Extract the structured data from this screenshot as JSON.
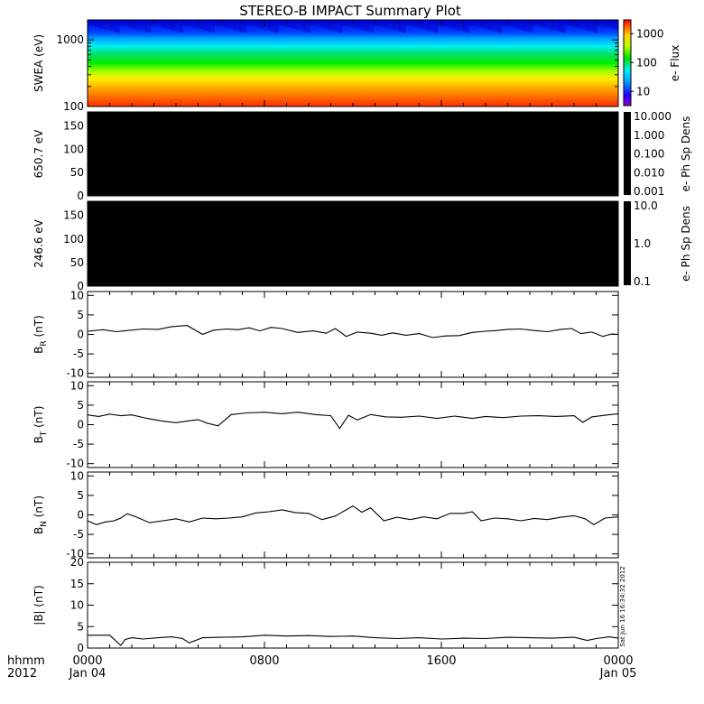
{
  "title": "STEREO-B IMPACT Summary Plot",
  "colors": {
    "background": "#ffffff",
    "axes": "#000000",
    "line": "#000000",
    "empty_panel": "#000000"
  },
  "time_axis": {
    "corner_label": "hhmm",
    "year_label": "2012",
    "ticks": [
      {
        "t": 0,
        "main": "0000",
        "sub": "Jan 04"
      },
      {
        "t": 8,
        "main": "0800",
        "sub": ""
      },
      {
        "t": 16,
        "main": "1600",
        "sub": ""
      },
      {
        "t": 24,
        "main": "0000",
        "sub": "Jan 05"
      }
    ],
    "range_hours": [
      0,
      24
    ]
  },
  "timestamp_note": "Sat Jun 16 16:34:32 2012",
  "chart_data": [
    {
      "type": "heatmap",
      "ylabel": "SWEA (eV)",
      "y_scale": "log",
      "ylim": [
        100,
        2000
      ],
      "yticks": [
        100,
        1000
      ],
      "ytick_labels": [
        "100",
        "1000"
      ],
      "color_scale": "rainbow",
      "colorbar": {
        "label": "e- Flux",
        "scale": "log",
        "range": [
          3,
          3000
        ],
        "ticks": [
          "10",
          "100",
          "1000"
        ]
      },
      "energy_color_profile": [
        {
          "energy_eV": 100,
          "color": "#ff2a00"
        },
        {
          "energy_eV": 180,
          "color": "#ffa000"
        },
        {
          "energy_eV": 260,
          "color": "#ffee00"
        },
        {
          "energy_eV": 330,
          "color": "#b0ff00"
        },
        {
          "energy_eV": 450,
          "color": "#00ee00"
        },
        {
          "energy_eV": 620,
          "color": "#00e070"
        },
        {
          "energy_eV": 800,
          "color": "#00f0f0"
        },
        {
          "energy_eV": 1050,
          "color": "#00a0ff"
        },
        {
          "energy_eV": 1300,
          "color": "#0040ff"
        },
        {
          "energy_eV": 2000,
          "color": "#0000e0"
        }
      ]
    },
    {
      "type": "heatmap",
      "ylabel": "650.7 eV",
      "ylim": [
        0,
        180
      ],
      "yticks": [
        0,
        50,
        100,
        150
      ],
      "fill": "#000000",
      "colorbar": {
        "label": "e- Ph Sp Dens",
        "scale": "log",
        "ticks": [
          "10.000",
          "1.000",
          "0.100",
          "0.010",
          "0.001"
        ]
      }
    },
    {
      "type": "heatmap",
      "ylabel": "246.6 eV",
      "ylim": [
        0,
        180
      ],
      "yticks": [
        0,
        50,
        100,
        150
      ],
      "fill": "#000000",
      "colorbar": {
        "label": "e- Ph Sp Dens",
        "scale": "log",
        "ticks": [
          "10.0",
          "1.0",
          "0.1"
        ]
      }
    },
    {
      "type": "line",
      "ylabel_main": "B",
      "ylabel_sub": "R",
      "ylabel_unit": "(nT)",
      "ylim": [
        -11,
        11
      ],
      "yticks": [
        -10,
        -5,
        0,
        5,
        10
      ],
      "x": [
        0,
        0.7,
        1.3,
        1.8,
        2.5,
        3.2,
        3.8,
        4.5,
        5.2,
        5.7,
        6.3,
        6.8,
        7.3,
        7.8,
        8.3,
        8.8,
        9.5,
        10.2,
        10.8,
        11.2,
        11.7,
        12.2,
        12.8,
        13.3,
        13.8,
        14.4,
        15.0,
        15.6,
        16.2,
        16.8,
        17.4,
        18.0,
        18.5,
        19.0,
        19.6,
        20.2,
        20.8,
        21.4,
        21.9,
        22.3,
        22.8,
        23.3,
        23.7,
        24
      ],
      "values": [
        0.8,
        1.2,
        0.7,
        1.0,
        1.4,
        1.3,
        2.0,
        2.3,
        0.0,
        1.1,
        1.4,
        1.2,
        1.7,
        0.9,
        1.8,
        1.5,
        0.5,
        0.9,
        0.3,
        1.5,
        -0.5,
        0.6,
        0.3,
        -0.2,
        0.4,
        -0.2,
        0.2,
        -0.8,
        -0.4,
        -0.3,
        0.5,
        0.8,
        1.0,
        1.3,
        1.4,
        1.0,
        0.7,
        1.3,
        1.5,
        0.2,
        0.6,
        -0.5,
        0.1,
        0.0
      ]
    },
    {
      "type": "line",
      "ylabel_main": "B",
      "ylabel_sub": "T",
      "ylabel_unit": "(nT)",
      "ylim": [
        -11,
        11
      ],
      "yticks": [
        -10,
        -5,
        0,
        5,
        10
      ],
      "x": [
        0,
        0.5,
        1.0,
        1.5,
        2.0,
        2.7,
        3.4,
        4.0,
        4.5,
        5.0,
        5.4,
        5.9,
        6.5,
        7.2,
        8.0,
        8.8,
        9.5,
        10.3,
        11.0,
        11.4,
        11.8,
        12.2,
        12.8,
        13.5,
        14.2,
        15.0,
        15.8,
        16.6,
        17.4,
        18.0,
        18.8,
        19.6,
        20.4,
        21.2,
        22.0,
        22.4,
        22.8,
        23.4,
        24
      ],
      "values": [
        2.5,
        2.1,
        2.7,
        2.3,
        2.5,
        1.6,
        0.9,
        0.5,
        0.9,
        1.3,
        0.4,
        -0.3,
        2.6,
        3.0,
        3.2,
        2.8,
        3.2,
        2.6,
        2.3,
        -1.0,
        2.4,
        1.2,
        2.6,
        2.0,
        1.9,
        2.2,
        1.6,
        2.2,
        1.6,
        2.1,
        1.8,
        2.2,
        2.3,
        2.1,
        2.3,
        0.6,
        2.0,
        2.4,
        2.8
      ]
    },
    {
      "type": "line",
      "ylabel_main": "B",
      "ylabel_sub": "N",
      "ylabel_unit": "(nT)",
      "ylim": [
        -11,
        11
      ],
      "yticks": [
        -10,
        -5,
        0,
        5,
        10
      ],
      "x": [
        0,
        0.4,
        0.8,
        1.2,
        1.5,
        1.8,
        2.2,
        2.8,
        3.4,
        4.0,
        4.6,
        5.2,
        5.8,
        6.4,
        7.0,
        7.6,
        8.2,
        8.8,
        9.4,
        10.0,
        10.6,
        11.2,
        11.6,
        12.0,
        12.4,
        12.8,
        13.4,
        14.0,
        14.6,
        15.2,
        15.8,
        16.4,
        17.0,
        17.4,
        17.8,
        18.4,
        19.0,
        19.6,
        20.2,
        20.8,
        21.4,
        22.0,
        22.5,
        22.9,
        23.4,
        24
      ],
      "values": [
        -1.5,
        -2.5,
        -1.8,
        -1.5,
        -0.8,
        0.3,
        -0.5,
        -2.0,
        -1.5,
        -1.0,
        -1.8,
        -0.8,
        -1.0,
        -0.8,
        -0.5,
        0.5,
        0.8,
        1.3,
        0.6,
        0.4,
        -1.2,
        -0.3,
        1.0,
        2.3,
        0.7,
        1.8,
        -1.5,
        -0.6,
        -1.2,
        -0.5,
        -1.0,
        0.4,
        0.4,
        0.8,
        -1.5,
        -0.8,
        -1.0,
        -1.5,
        -0.9,
        -1.2,
        -0.6,
        -0.2,
        -1.0,
        -2.5,
        -0.8,
        -0.5
      ]
    },
    {
      "type": "line",
      "ylabel_main": "|B| (nT)",
      "ylim": [
        0,
        20
      ],
      "yticks": [
        0,
        5,
        10,
        15,
        20
      ],
      "x": [
        0,
        1.0,
        1.5,
        1.7,
        2.0,
        2.5,
        3.2,
        3.8,
        4.3,
        4.6,
        5.2,
        6.0,
        7.0,
        8.0,
        9.0,
        10.0,
        11.0,
        12.0,
        13.0,
        14.0,
        15.0,
        16.0,
        17.0,
        18.0,
        19.0,
        20.0,
        21.0,
        22.0,
        22.6,
        23.0,
        23.6,
        24
      ],
      "values": [
        3.0,
        3.0,
        0.6,
        2.0,
        2.4,
        2.1,
        2.4,
        2.6,
        2.2,
        1.2,
        2.4,
        2.5,
        2.6,
        3.0,
        2.8,
        2.9,
        2.7,
        2.8,
        2.4,
        2.2,
        2.4,
        2.1,
        2.3,
        2.2,
        2.5,
        2.4,
        2.3,
        2.5,
        1.8,
        2.2,
        2.6,
        2.3
      ]
    }
  ]
}
